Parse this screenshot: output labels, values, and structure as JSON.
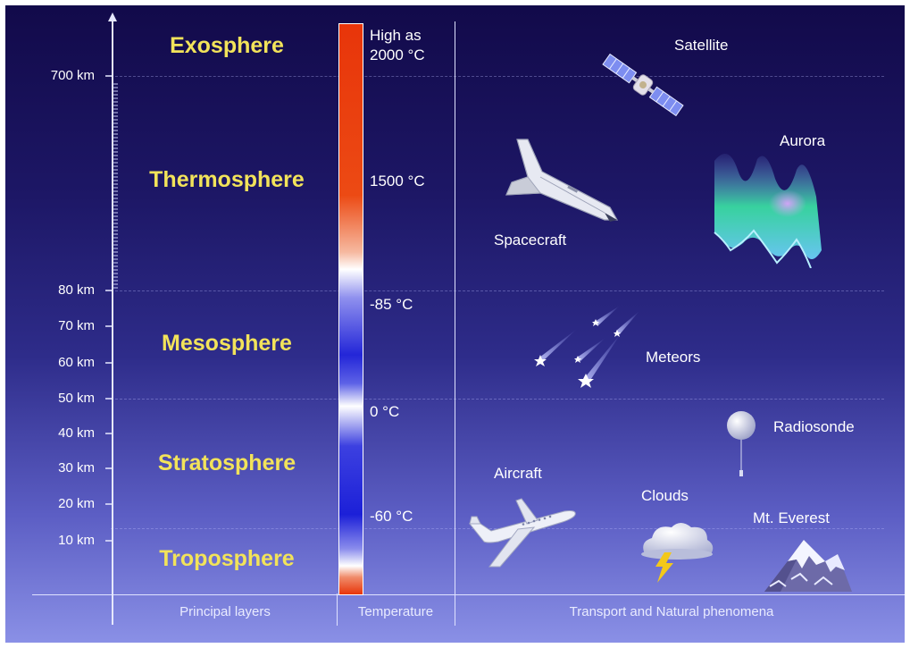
{
  "layers": [
    {
      "name": "Exosphere"
    },
    {
      "name": "Thermosphere"
    },
    {
      "name": "Mesosphere"
    },
    {
      "name": "Stratosphere"
    },
    {
      "name": "Troposphere"
    }
  ],
  "altitude_labels": [
    "700 km",
    "80 km",
    "70 km",
    "60 km",
    "50 km",
    "40 km",
    "30 km",
    "20 km",
    "10 km"
  ],
  "temperatures": {
    "top_line1": "High as",
    "top_line2": "2000 °C",
    "t1500": "1500 °C",
    "t_minus85": "-85 °C",
    "t0": "0 °C",
    "t_minus60": "-60 °C"
  },
  "phenomena": {
    "satellite": "Satellite",
    "aurora": "Aurora",
    "spacecraft": "Spacecraft",
    "meteors": "Meteors",
    "radiosonde": "Radiosonde",
    "aircraft": "Aircraft",
    "clouds": "Clouds",
    "everest": "Mt. Everest"
  },
  "footer": {
    "principal_layers": "Principal layers",
    "temperature": "Temperature",
    "transport": "Transport and Natural phenomena"
  },
  "colors": {
    "layer_text": "#f2e35a",
    "sky_top": "#120a4a",
    "sky_bottom": "#8a90e6",
    "temp_hot": "#e8350a",
    "temp_cold": "#1c20d8"
  },
  "icons": [
    "satellite-icon",
    "spacecraft-icon",
    "aurora-icon",
    "meteors-icon",
    "radiosonde-icon",
    "aircraft-icon",
    "clouds-icon",
    "lightning-icon",
    "mountain-icon"
  ]
}
